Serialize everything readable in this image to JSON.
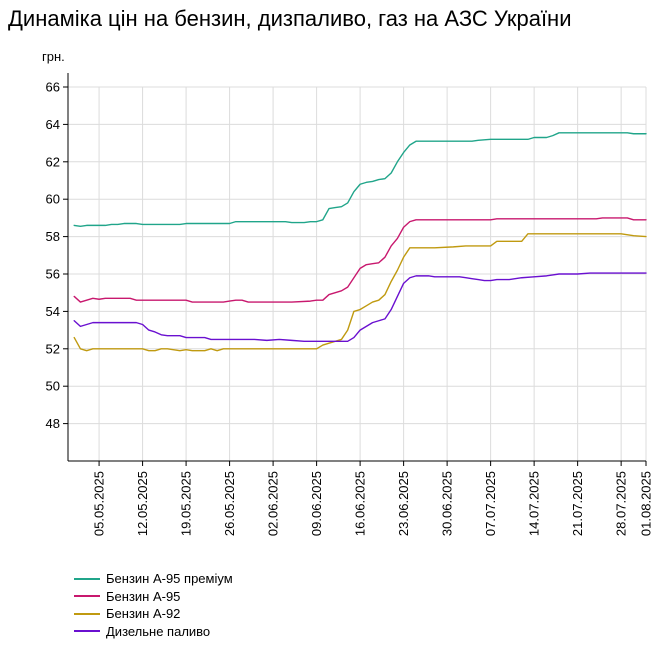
{
  "chart_data": {
    "type": "line",
    "title": "Динаміка цін на бензин, дизпаливо, газ на АЗС України",
    "ylabel": "грн.",
    "xlabel": "",
    "ylim": [
      46,
      66
    ],
    "yticks": [
      48,
      50,
      52,
      54,
      56,
      58,
      60,
      62,
      64,
      66
    ],
    "xlim": [
      "2025-04-30",
      "2025-08-01"
    ],
    "xticks": [
      "05.05.2025",
      "12.05.2025",
      "19.05.2025",
      "26.05.2025",
      "02.06.2025",
      "09.06.2025",
      "16.06.2025",
      "23.06.2025",
      "30.06.2025",
      "07.07.2025",
      "14.07.2025",
      "21.07.2025",
      "28.07.2025",
      "01.08.2025"
    ],
    "grid": true,
    "legend_position": "bottom-left",
    "series": [
      {
        "name": "Бензин А-95 преміум",
        "color": "#20a58a",
        "points": [
          [
            "2025-05-01",
            58.6
          ],
          [
            "2025-05-02",
            58.55
          ],
          [
            "2025-05-03",
            58.6
          ],
          [
            "2025-05-04",
            58.6
          ],
          [
            "2025-05-05",
            58.6
          ],
          [
            "2025-05-06",
            58.6
          ],
          [
            "2025-05-07",
            58.65
          ],
          [
            "2025-05-08",
            58.65
          ],
          [
            "2025-05-09",
            58.7
          ],
          [
            "2025-05-10",
            58.7
          ],
          [
            "2025-05-11",
            58.7
          ],
          [
            "2025-05-12",
            58.65
          ],
          [
            "2025-05-14",
            58.65
          ],
          [
            "2025-05-16",
            58.65
          ],
          [
            "2025-05-18",
            58.65
          ],
          [
            "2025-05-19",
            58.7
          ],
          [
            "2025-05-21",
            58.7
          ],
          [
            "2025-05-23",
            58.7
          ],
          [
            "2025-05-26",
            58.7
          ],
          [
            "2025-05-27",
            58.8
          ],
          [
            "2025-05-29",
            58.8
          ],
          [
            "2025-06-01",
            58.8
          ],
          [
            "2025-06-04",
            58.8
          ],
          [
            "2025-06-05",
            58.75
          ],
          [
            "2025-06-07",
            58.75
          ],
          [
            "2025-06-08",
            58.8
          ],
          [
            "2025-06-09",
            58.8
          ],
          [
            "2025-06-10",
            58.9
          ],
          [
            "2025-06-11",
            59.5
          ],
          [
            "2025-06-12",
            59.55
          ],
          [
            "2025-06-13",
            59.6
          ],
          [
            "2025-06-14",
            59.8
          ],
          [
            "2025-06-15",
            60.4
          ],
          [
            "2025-06-16",
            60.8
          ],
          [
            "2025-06-17",
            60.9
          ],
          [
            "2025-06-18",
            60.95
          ],
          [
            "2025-06-19",
            61.05
          ],
          [
            "2025-06-20",
            61.1
          ],
          [
            "2025-06-21",
            61.4
          ],
          [
            "2025-06-22",
            62.0
          ],
          [
            "2025-06-23",
            62.5
          ],
          [
            "2025-06-24",
            62.9
          ],
          [
            "2025-06-25",
            63.1
          ],
          [
            "2025-06-27",
            63.1
          ],
          [
            "2025-06-30",
            63.1
          ],
          [
            "2025-07-02",
            63.1
          ],
          [
            "2025-07-04",
            63.1
          ],
          [
            "2025-07-05",
            63.15
          ],
          [
            "2025-07-07",
            63.2
          ],
          [
            "2025-07-10",
            63.2
          ],
          [
            "2025-07-12",
            63.2
          ],
          [
            "2025-07-13",
            63.2
          ],
          [
            "2025-07-14",
            63.3
          ],
          [
            "2025-07-16",
            63.3
          ],
          [
            "2025-07-17",
            63.4
          ],
          [
            "2025-07-18",
            63.55
          ],
          [
            "2025-07-21",
            63.55
          ],
          [
            "2025-07-25",
            63.55
          ],
          [
            "2025-07-28",
            63.55
          ],
          [
            "2025-07-29",
            63.55
          ],
          [
            "2025-07-30",
            63.5
          ],
          [
            "2025-08-01",
            63.5
          ]
        ]
      },
      {
        "name": "Бензин А-95",
        "color": "#c8186e",
        "points": [
          [
            "2025-05-01",
            54.8
          ],
          [
            "2025-05-02",
            54.5
          ],
          [
            "2025-05-03",
            54.6
          ],
          [
            "2025-05-04",
            54.7
          ],
          [
            "2025-05-05",
            54.65
          ],
          [
            "2025-05-06",
            54.7
          ],
          [
            "2025-05-08",
            54.7
          ],
          [
            "2025-05-10",
            54.7
          ],
          [
            "2025-05-11",
            54.6
          ],
          [
            "2025-05-14",
            54.6
          ],
          [
            "2025-05-17",
            54.6
          ],
          [
            "2025-05-19",
            54.6
          ],
          [
            "2025-05-20",
            54.5
          ],
          [
            "2025-05-23",
            54.5
          ],
          [
            "2025-05-25",
            54.5
          ],
          [
            "2025-05-26",
            54.55
          ],
          [
            "2025-05-27",
            54.6
          ],
          [
            "2025-05-28",
            54.6
          ],
          [
            "2025-05-29",
            54.5
          ],
          [
            "2025-06-02",
            54.5
          ],
          [
            "2025-06-05",
            54.5
          ],
          [
            "2025-06-08",
            54.55
          ],
          [
            "2025-06-09",
            54.6
          ],
          [
            "2025-06-10",
            54.6
          ],
          [
            "2025-06-11",
            54.9
          ],
          [
            "2025-06-12",
            55.0
          ],
          [
            "2025-06-13",
            55.1
          ],
          [
            "2025-06-14",
            55.3
          ],
          [
            "2025-06-15",
            55.8
          ],
          [
            "2025-06-16",
            56.3
          ],
          [
            "2025-06-17",
            56.5
          ],
          [
            "2025-06-18",
            56.55
          ],
          [
            "2025-06-19",
            56.6
          ],
          [
            "2025-06-20",
            56.9
          ],
          [
            "2025-06-21",
            57.5
          ],
          [
            "2025-06-22",
            57.9
          ],
          [
            "2025-06-23",
            58.5
          ],
          [
            "2025-06-24",
            58.8
          ],
          [
            "2025-06-25",
            58.9
          ],
          [
            "2025-06-28",
            58.9
          ],
          [
            "2025-07-02",
            58.9
          ],
          [
            "2025-07-07",
            58.9
          ],
          [
            "2025-07-08",
            58.95
          ],
          [
            "2025-07-12",
            58.95
          ],
          [
            "2025-07-14",
            58.95
          ],
          [
            "2025-07-18",
            58.95
          ],
          [
            "2025-07-21",
            58.95
          ],
          [
            "2025-07-24",
            58.95
          ],
          [
            "2025-07-25",
            59.0
          ],
          [
            "2025-07-28",
            59.0
          ],
          [
            "2025-07-29",
            59.0
          ],
          [
            "2025-07-30",
            58.9
          ],
          [
            "2025-08-01",
            58.9
          ]
        ]
      },
      {
        "name": "Бензин А-92",
        "color": "#c09a10",
        "points": [
          [
            "2025-05-01",
            52.6
          ],
          [
            "2025-05-02",
            52.0
          ],
          [
            "2025-05-03",
            51.9
          ],
          [
            "2025-05-04",
            52.0
          ],
          [
            "2025-05-06",
            52.0
          ],
          [
            "2025-05-08",
            52.0
          ],
          [
            "2025-05-10",
            52.0
          ],
          [
            "2025-05-12",
            52.0
          ],
          [
            "2025-05-13",
            51.9
          ],
          [
            "2025-05-14",
            51.9
          ],
          [
            "2025-05-15",
            52.0
          ],
          [
            "2025-05-16",
            52.0
          ],
          [
            "2025-05-18",
            51.9
          ],
          [
            "2025-05-19",
            51.95
          ],
          [
            "2025-05-20",
            51.9
          ],
          [
            "2025-05-22",
            51.9
          ],
          [
            "2025-05-23",
            52.0
          ],
          [
            "2025-05-24",
            51.9
          ],
          [
            "2025-05-25",
            52.0
          ],
          [
            "2025-05-26",
            52.0
          ],
          [
            "2025-05-28",
            52.0
          ],
          [
            "2025-06-01",
            52.0
          ],
          [
            "2025-06-03",
            52.0
          ],
          [
            "2025-06-05",
            52.0
          ],
          [
            "2025-06-07",
            52.0
          ],
          [
            "2025-06-09",
            52.0
          ],
          [
            "2025-06-10",
            52.2
          ],
          [
            "2025-06-11",
            52.3
          ],
          [
            "2025-06-12",
            52.4
          ],
          [
            "2025-06-13",
            52.5
          ],
          [
            "2025-06-14",
            53.0
          ],
          [
            "2025-06-15",
            54.0
          ],
          [
            "2025-06-16",
            54.1
          ],
          [
            "2025-06-17",
            54.3
          ],
          [
            "2025-06-18",
            54.5
          ],
          [
            "2025-06-19",
            54.6
          ],
          [
            "2025-06-20",
            54.9
          ],
          [
            "2025-06-21",
            55.6
          ],
          [
            "2025-06-22",
            56.2
          ],
          [
            "2025-06-23",
            56.9
          ],
          [
            "2025-06-24",
            57.4
          ],
          [
            "2025-06-26",
            57.4
          ],
          [
            "2025-06-28",
            57.4
          ],
          [
            "2025-07-01",
            57.45
          ],
          [
            "2025-07-03",
            57.5
          ],
          [
            "2025-07-05",
            57.5
          ],
          [
            "2025-07-07",
            57.5
          ],
          [
            "2025-07-08",
            57.75
          ],
          [
            "2025-07-10",
            57.75
          ],
          [
            "2025-07-12",
            57.75
          ],
          [
            "2025-07-13",
            58.15
          ],
          [
            "2025-07-15",
            58.15
          ],
          [
            "2025-07-18",
            58.15
          ],
          [
            "2025-07-21",
            58.15
          ],
          [
            "2025-07-25",
            58.15
          ],
          [
            "2025-07-28",
            58.15
          ],
          [
            "2025-07-30",
            58.05
          ],
          [
            "2025-08-01",
            58.0
          ]
        ]
      },
      {
        "name": "Дизельне паливо",
        "color": "#6a10d0",
        "points": [
          [
            "2025-05-01",
            53.5
          ],
          [
            "2025-05-02",
            53.2
          ],
          [
            "2025-05-03",
            53.3
          ],
          [
            "2025-05-04",
            53.4
          ],
          [
            "2025-05-05",
            53.4
          ],
          [
            "2025-05-07",
            53.4
          ],
          [
            "2025-05-09",
            53.4
          ],
          [
            "2025-05-11",
            53.4
          ],
          [
            "2025-05-12",
            53.3
          ],
          [
            "2025-05-13",
            53.0
          ],
          [
            "2025-05-14",
            52.9
          ],
          [
            "2025-05-15",
            52.75
          ],
          [
            "2025-05-16",
            52.7
          ],
          [
            "2025-05-17",
            52.7
          ],
          [
            "2025-05-18",
            52.7
          ],
          [
            "2025-05-19",
            52.6
          ],
          [
            "2025-05-21",
            52.6
          ],
          [
            "2025-05-22",
            52.6
          ],
          [
            "2025-05-23",
            52.5
          ],
          [
            "2025-05-26",
            52.5
          ],
          [
            "2025-05-28",
            52.5
          ],
          [
            "2025-05-29",
            52.5
          ],
          [
            "2025-05-30",
            52.5
          ],
          [
            "2025-06-01",
            52.45
          ],
          [
            "2025-06-03",
            52.5
          ],
          [
            "2025-06-05",
            52.45
          ],
          [
            "2025-06-07",
            52.4
          ],
          [
            "2025-06-09",
            52.4
          ],
          [
            "2025-06-12",
            52.4
          ],
          [
            "2025-06-13",
            52.4
          ],
          [
            "2025-06-14",
            52.4
          ],
          [
            "2025-06-15",
            52.6
          ],
          [
            "2025-06-16",
            53.0
          ],
          [
            "2025-06-17",
            53.2
          ],
          [
            "2025-06-18",
            53.4
          ],
          [
            "2025-06-19",
            53.5
          ],
          [
            "2025-06-20",
            53.6
          ],
          [
            "2025-06-21",
            54.1
          ],
          [
            "2025-06-22",
            54.8
          ],
          [
            "2025-06-23",
            55.5
          ],
          [
            "2025-06-24",
            55.8
          ],
          [
            "2025-06-25",
            55.9
          ],
          [
            "2025-06-27",
            55.9
          ],
          [
            "2025-06-28",
            55.85
          ],
          [
            "2025-06-30",
            55.85
          ],
          [
            "2025-07-02",
            55.85
          ],
          [
            "2025-07-03",
            55.8
          ],
          [
            "2025-07-04",
            55.75
          ],
          [
            "2025-07-05",
            55.7
          ],
          [
            "2025-07-06",
            55.65
          ],
          [
            "2025-07-07",
            55.65
          ],
          [
            "2025-07-08",
            55.7
          ],
          [
            "2025-07-10",
            55.7
          ],
          [
            "2025-07-12",
            55.8
          ],
          [
            "2025-07-14",
            55.85
          ],
          [
            "2025-07-16",
            55.9
          ],
          [
            "2025-07-17",
            55.95
          ],
          [
            "2025-07-18",
            56.0
          ],
          [
            "2025-07-21",
            56.0
          ],
          [
            "2025-07-23",
            56.05
          ],
          [
            "2025-07-26",
            56.05
          ],
          [
            "2025-07-28",
            56.05
          ],
          [
            "2025-07-30",
            56.05
          ],
          [
            "2025-08-01",
            56.05
          ]
        ]
      }
    ]
  }
}
